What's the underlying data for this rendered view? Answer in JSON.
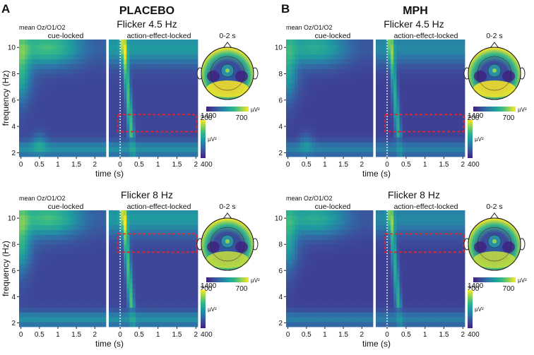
{
  "panels": [
    {
      "letter": "A",
      "condition": "PLACEBO"
    },
    {
      "letter": "B",
      "condition": "MPH"
    }
  ],
  "rows": [
    {
      "flicker": "Flicker 4.5 Hz",
      "box_freq": [
        3.6,
        4.9
      ]
    },
    {
      "flicker": "Flicker 8 Hz",
      "box_freq": [
        7.4,
        8.8
      ]
    }
  ],
  "labels": {
    "mean": "mean Oz/O1/O2",
    "cue": "cue-locked",
    "action": "action-effect-locked",
    "topo": "0-2 s",
    "ylabel": "frequency (Hz)",
    "xlabel": "time (s)",
    "unit": "µV²"
  },
  "axes": {
    "yticks": [
      2,
      4,
      6,
      8,
      10
    ],
    "cue_xticks": [
      "0",
      "0.5",
      "1",
      "1.5",
      "2"
    ],
    "action_xticks": [
      "0",
      "0.5",
      "1",
      "1.5",
      "2"
    ]
  },
  "colorbars": {
    "tf": {
      "min": "400",
      "max": "1400"
    },
    "topo": {
      "min": "200",
      "max": "700"
    }
  },
  "colormap": [
    "#3e2080",
    "#3d4a9a",
    "#2e73a8",
    "#1f9ba0",
    "#35b888",
    "#8fd255",
    "#fde725"
  ]
}
